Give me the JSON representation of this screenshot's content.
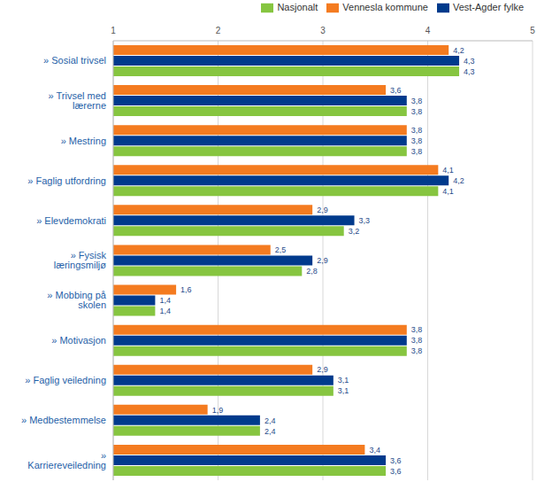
{
  "chart_data": {
    "type": "bar",
    "orientation": "horizontal",
    "categories": [
      "» Sosial trivsel",
      "» Trivsel med lærerne",
      "» Mestring",
      "» Faglig utfordring",
      "» Elevdemokrati",
      "» Fysisk læringsmiljø",
      "» Mobbing på skolen",
      "» Motivasjon",
      "» Faglig veiledning",
      "» Medbestemmelse",
      "» Karriereveiledning"
    ],
    "series": [
      {
        "name": "Vennesla kommune",
        "color": "#f47b20",
        "values": [
          4.2,
          3.6,
          3.8,
          4.1,
          2.9,
          2.5,
          1.6,
          3.8,
          2.9,
          1.9,
          3.4
        ],
        "value_labels": [
          "4,2",
          "3,6",
          "3,8",
          "4,1",
          "2,9",
          "2,5",
          "1,6",
          "3,8",
          "2,9",
          "1,9",
          "3,4"
        ]
      },
      {
        "name": "Vest-Agder fylke",
        "color": "#003a8c",
        "values": [
          4.3,
          3.8,
          3.8,
          4.2,
          3.3,
          2.9,
          1.4,
          3.8,
          3.1,
          2.4,
          3.6
        ],
        "value_labels": [
          "4,3",
          "3,8",
          "3,8",
          "4,2",
          "3,3",
          "2,9",
          "1,4",
          "3,8",
          "3,1",
          "2,4",
          "3,6"
        ]
      },
      {
        "name": "Nasjonalt",
        "color": "#86c540",
        "values": [
          4.3,
          3.8,
          3.8,
          4.1,
          3.2,
          2.8,
          1.4,
          3.8,
          3.1,
          2.4,
          3.6
        ],
        "value_labels": [
          "4,3",
          "3,8",
          "3,8",
          "4,1",
          "3,2",
          "2,8",
          "1,4",
          "3,8",
          "3,1",
          "2,4",
          "3,6"
        ]
      }
    ],
    "xlim": [
      1,
      5
    ],
    "xticks": [
      1,
      2,
      3,
      4,
      5
    ],
    "grid": true,
    "legend": "upper right",
    "data_labels": true
  }
}
